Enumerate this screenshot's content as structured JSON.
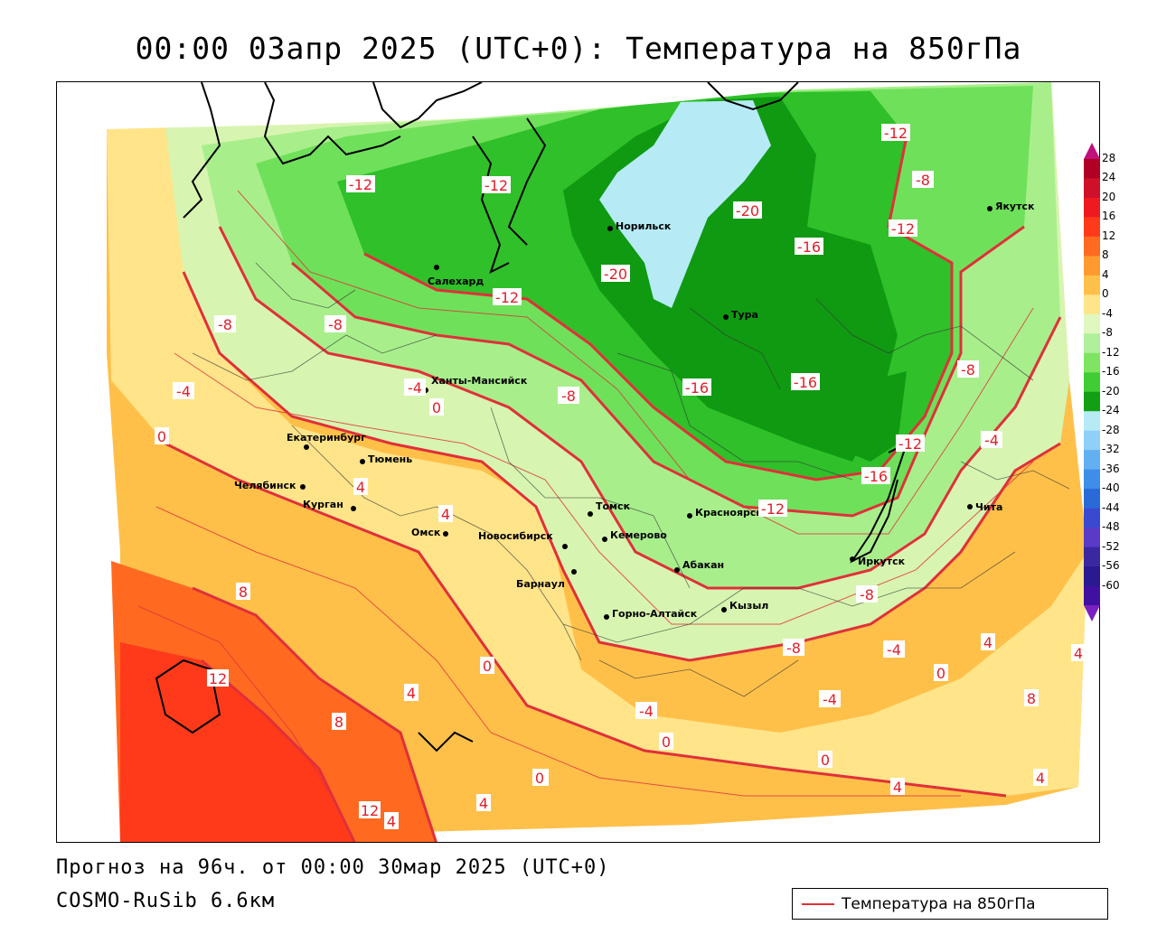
{
  "title": "00:00 03апр 2025 (UTC+0): Температура на 850гПа",
  "footer": {
    "forecast": "Прогноз на 96ч. от 00:00 30мар 2025 (UTC+0)",
    "model": "COSMO-RuSib 6.6км"
  },
  "legend": {
    "label": "Температура на 850гПа",
    "line_color": "#e0303a"
  },
  "colors": {
    "contour": "#e0303a",
    "warm_deep": "#ff3a1a",
    "warm_orange": "#ff8a2a",
    "warm_light": "#ffc04a",
    "warm_pale": "#ffe48a",
    "cold_pale": "#d7f5b0",
    "cold_light": "#a8ef8c",
    "cold_mid": "#6fe05a",
    "cold_green": "#2fc02a",
    "cold_deep": "#0f9a12",
    "frost": "#b6ebf6"
  },
  "colorbar": {
    "ticks": [
      "28",
      "24",
      "20",
      "16",
      "12",
      "8",
      "4",
      "0",
      "-4",
      "-8",
      "-12",
      "-16",
      "-20",
      "-24",
      "-28",
      "-32",
      "-36",
      "-40",
      "-44",
      "-48",
      "-52",
      "-56",
      "-60"
    ],
    "colors": [
      "#b00024",
      "#d0102a",
      "#ee1a20",
      "#ff3a1a",
      "#ff6a20",
      "#ff9a30",
      "#ffc04a",
      "#ffe48a",
      "#e0f8c0",
      "#b0f09a",
      "#7fe462",
      "#3fcc34",
      "#129f14",
      "#b6ebf6",
      "#8ed0f8",
      "#62b0f2",
      "#3c8ee8",
      "#2a6ad8",
      "#3a4ad0",
      "#5a3ac8",
      "#3a28a0",
      "#2a1a90",
      "#4010a0"
    ]
  },
  "cities": [
    {
      "name": "Якутск"
    },
    {
      "name": "Норильск"
    },
    {
      "name": "Салехард"
    },
    {
      "name": "Тура"
    },
    {
      "name": "Ханты-Мансийск"
    },
    {
      "name": "Екатеринбург"
    },
    {
      "name": "Тюмень"
    },
    {
      "name": "Челябинск"
    },
    {
      "name": "Курган"
    },
    {
      "name": "Омск"
    },
    {
      "name": "Новосибирск"
    },
    {
      "name": "Томск"
    },
    {
      "name": "Кемерово"
    },
    {
      "name": "Красноярск"
    },
    {
      "name": "Абакан"
    },
    {
      "name": "Барнаул"
    },
    {
      "name": "Горно-Алтайск"
    },
    {
      "name": "Кызыл"
    },
    {
      "name": "Иркутск"
    },
    {
      "name": "Чита"
    }
  ],
  "isotherm_labels": [
    "-12",
    "-8",
    "-12",
    "-20",
    "-16",
    "-16",
    "-16",
    "-12",
    "-8",
    "-4",
    "-12",
    "-8",
    "-8",
    "-4",
    "-16",
    "-20",
    "-12",
    "-12",
    "-8",
    "-4",
    "0",
    "0",
    "4",
    "4",
    "8",
    "12",
    "8",
    "4",
    "0",
    "-4",
    "0",
    "0",
    "4",
    "4",
    "12",
    "4",
    "-8",
    "-4",
    "0",
    "4",
    "8",
    "4",
    "4",
    "0",
    "-12",
    "-4",
    "-8",
    "4"
  ]
}
